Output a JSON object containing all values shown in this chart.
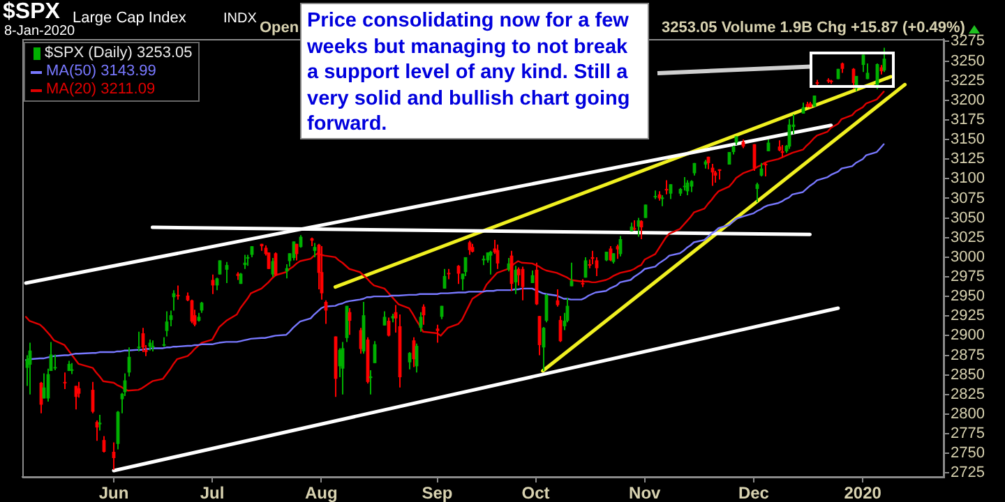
{
  "chart_data": {
    "type": "candlestick",
    "title": "$SPX",
    "subtitle": "Large Cap Index",
    "annotations": [
      "INDX",
      "8-Jan-2020",
      "Open",
      "3253.05 Volume 1.9B Chg +15.87 (+0.49%)",
      "Price consolidating now for a few weeks but managing to not break a support level of any kind. Still a very solid and bullish chart going forward."
    ],
    "x": [
      "2019-05-09",
      "2019-05-10",
      "2019-05-13",
      "2019-05-14",
      "2019-05-15",
      "2019-05-16",
      "2019-05-17",
      "2019-05-20",
      "2019-05-21",
      "2019-05-22",
      "2019-05-23",
      "2019-05-24",
      "2019-05-28",
      "2019-05-29",
      "2019-05-30",
      "2019-05-31",
      "2019-06-03",
      "2019-06-04",
      "2019-06-05",
      "2019-06-06",
      "2019-06-07",
      "2019-06-10",
      "2019-06-11",
      "2019-06-12",
      "2019-06-13",
      "2019-06-14",
      "2019-06-17",
      "2019-06-18",
      "2019-06-19",
      "2019-06-20",
      "2019-06-21",
      "2019-06-24",
      "2019-06-25",
      "2019-06-26",
      "2019-06-27",
      "2019-06-28",
      "2019-07-01",
      "2019-07-02",
      "2019-07-03",
      "2019-07-05",
      "2019-07-08",
      "2019-07-09",
      "2019-07-10",
      "2019-07-11",
      "2019-07-12",
      "2019-07-15",
      "2019-07-16",
      "2019-07-17",
      "2019-07-18",
      "2019-07-19",
      "2019-07-22",
      "2019-07-23",
      "2019-07-24",
      "2019-07-25",
      "2019-07-26",
      "2019-07-29",
      "2019-07-30",
      "2019-07-31",
      "2019-08-01",
      "2019-08-02",
      "2019-08-05",
      "2019-08-06",
      "2019-08-07",
      "2019-08-08",
      "2019-08-09",
      "2019-08-12",
      "2019-08-13",
      "2019-08-14",
      "2019-08-15",
      "2019-08-16",
      "2019-08-19",
      "2019-08-20",
      "2019-08-21",
      "2019-08-22",
      "2019-08-23",
      "2019-08-26",
      "2019-08-27",
      "2019-08-28",
      "2019-08-29",
      "2019-08-30",
      "2019-09-03",
      "2019-09-04",
      "2019-09-05",
      "2019-09-06",
      "2019-09-09",
      "2019-09-10",
      "2019-09-11",
      "2019-09-12",
      "2019-09-13",
      "2019-09-16",
      "2019-09-17",
      "2019-09-18",
      "2019-09-19",
      "2019-09-20",
      "2019-09-23",
      "2019-09-24",
      "2019-09-25",
      "2019-09-26",
      "2019-09-27",
      "2019-09-30",
      "2019-10-01",
      "2019-10-02",
      "2019-10-03",
      "2019-10-04",
      "2019-10-07",
      "2019-10-08",
      "2019-10-09",
      "2019-10-10",
      "2019-10-11",
      "2019-10-14",
      "2019-10-15",
      "2019-10-16",
      "2019-10-17",
      "2019-10-18",
      "2019-10-21",
      "2019-10-22",
      "2019-10-23",
      "2019-10-24",
      "2019-10-25",
      "2019-10-28",
      "2019-10-29",
      "2019-10-30",
      "2019-10-31",
      "2019-11-01",
      "2019-11-04",
      "2019-11-05",
      "2019-11-06",
      "2019-11-07",
      "2019-11-08",
      "2019-11-11",
      "2019-11-12",
      "2019-11-13",
      "2019-11-14",
      "2019-11-15",
      "2019-11-18",
      "2019-11-19",
      "2019-11-20",
      "2019-11-21",
      "2019-11-22",
      "2019-11-25",
      "2019-11-26",
      "2019-11-27",
      "2019-11-29",
      "2019-12-02",
      "2019-12-03",
      "2019-12-04",
      "2019-12-05",
      "2019-12-06",
      "2019-12-09",
      "2019-12-10",
      "2019-12-11",
      "2019-12-12",
      "2019-12-13",
      "2019-12-16",
      "2019-12-17",
      "2019-12-18",
      "2019-12-19",
      "2019-12-20",
      "2019-12-23",
      "2019-12-24",
      "2019-12-26",
      "2019-12-27",
      "2019-12-30",
      "2019-12-31",
      "2020-01-02",
      "2020-01-03",
      "2020-01-06",
      "2020-01-07",
      "2020-01-08"
    ],
    "series": [
      {
        "name": "$SPX (Daily) 3253.05",
        "ohlc": [
          [
            2859,
            2875,
            2836,
            2870
          ],
          [
            2863,
            2891,
            2825,
            2881
          ],
          [
            2840,
            2841,
            2801,
            2812
          ],
          [
            2820,
            2852,
            2820,
            2834
          ],
          [
            2820,
            2858,
            2816,
            2851
          ],
          [
            2855,
            2892,
            2855,
            2876
          ],
          [
            2859,
            2876,
            2856,
            2860
          ],
          [
            2841,
            2853,
            2832,
            2840
          ],
          [
            2855,
            2868,
            2855,
            2864
          ],
          [
            2856,
            2865,
            2851,
            2857
          ],
          [
            2836,
            2836,
            2806,
            2822
          ],
          [
            2833,
            2841,
            2821,
            2826
          ],
          [
            2831,
            2841,
            2801,
            2803
          ],
          [
            2790,
            2792,
            2766,
            2783
          ],
          [
            2787,
            2799,
            2779,
            2789
          ],
          [
            2767,
            2772,
            2751,
            2752
          ],
          [
            2752,
            2764,
            2729,
            2744
          ],
          [
            2762,
            2804,
            2755,
            2803
          ],
          [
            2819,
            2827,
            2801,
            2826
          ],
          [
            2828,
            2852,
            2823,
            2843
          ],
          [
            2853,
            2885,
            2848,
            2873
          ],
          [
            2885,
            2905,
            2880,
            2886
          ],
          [
            2903,
            2910,
            2879,
            2885
          ],
          [
            2882,
            2888,
            2874,
            2879
          ],
          [
            2886,
            2895,
            2881,
            2891
          ],
          [
            2886,
            2894,
            2880,
            2887
          ],
          [
            2889,
            2898,
            2886,
            2889
          ],
          [
            2906,
            2931,
            2899,
            2918
          ],
          [
            2920,
            2932,
            2912,
            2926
          ],
          [
            2949,
            2958,
            2932,
            2954
          ],
          [
            2952,
            2964,
            2946,
            2950
          ],
          [
            2951,
            2955,
            2944,
            2945
          ],
          [
            2945,
            2946,
            2916,
            2918
          ],
          [
            2926,
            2933,
            2912,
            2914
          ],
          [
            2919,
            2929,
            2918,
            2924
          ],
          [
            2932,
            2943,
            2929,
            2942
          ],
          [
            2971,
            2978,
            2953,
            2964
          ],
          [
            2964,
            2974,
            2958,
            2973
          ],
          [
            2978,
            2996,
            2978,
            2996
          ],
          [
            2984,
            2994,
            2967,
            2990
          ],
          [
            2979,
            2981,
            2971,
            2976
          ],
          [
            2966,
            2980,
            2966,
            2979
          ],
          [
            2990,
            3003,
            2985,
            2993
          ],
          [
            2999,
            3003,
            2989,
            3000
          ],
          [
            3003,
            3014,
            3000,
            3014
          ],
          [
            3017,
            3017,
            3008,
            3014
          ],
          [
            3012,
            3015,
            3002,
            3004
          ],
          [
            3006,
            3006,
            2985,
            2985
          ],
          [
            2978,
            2999,
            2975,
            2995
          ],
          [
            3005,
            3006,
            2976,
            2977
          ],
          [
            2982,
            2991,
            2973,
            2986
          ],
          [
            2995,
            3005,
            2988,
            3005
          ],
          [
            2999,
            3020,
            2996,
            3020
          ],
          [
            3017,
            3017,
            2996,
            3004
          ],
          [
            3013,
            3028,
            3012,
            3026
          ],
          [
            3024,
            3025,
            3014,
            3021
          ],
          [
            3008,
            3018,
            3000,
            3013
          ],
          [
            3016,
            3017,
            2959,
            2980
          ],
          [
            2981,
            3014,
            2946,
            2954
          ],
          [
            2943,
            2945,
            2915,
            2932
          ],
          [
            2899,
            2899,
            2822,
            2845
          ],
          [
            2861,
            2884,
            2847,
            2882
          ],
          [
            2858,
            2892,
            2825,
            2884
          ],
          [
            2897,
            2938,
            2892,
            2938
          ],
          [
            2930,
            2935,
            2901,
            2919
          ],
          [
            2907,
            2910,
            2877,
            2883
          ],
          [
            2880,
            2943,
            2877,
            2926
          ],
          [
            2895,
            2898,
            2839,
            2841
          ],
          [
            2846,
            2856,
            2825,
            2848
          ],
          [
            2865,
            2893,
            2865,
            2889
          ],
          [
            2913,
            2931,
            2913,
            2924
          ],
          [
            2919,
            2923,
            2899,
            2900
          ],
          [
            2922,
            2928,
            2917,
            2925
          ],
          [
            2930,
            2939,
            2904,
            2922
          ],
          [
            2912,
            2927,
            2834,
            2847
          ],
          [
            2866,
            2879,
            2857,
            2878
          ],
          [
            2894,
            2898,
            2860,
            2870
          ],
          [
            2861,
            2890,
            2853,
            2887
          ],
          [
            2910,
            2930,
            2905,
            2924
          ],
          [
            2937,
            2940,
            2914,
            2926
          ],
          [
            2909,
            2914,
            2891,
            2906
          ],
          [
            2924,
            2938,
            2921,
            2938
          ],
          [
            2960,
            2985,
            2960,
            2976
          ],
          [
            2980,
            2985,
            2972,
            2979
          ],
          [
            2989,
            2990,
            2966,
            2979
          ],
          [
            2972,
            2979,
            2958,
            2979
          ],
          [
            2981,
            3000,
            2976,
            3000
          ],
          [
            3019,
            3021,
            3003,
            3009
          ],
          [
            3013,
            3017,
            3006,
            3007
          ],
          [
            2996,
            3002,
            2990,
            2998
          ],
          [
            2996,
            3006,
            2993,
            3006
          ],
          [
            3002,
            3008,
            2978,
            3007
          ],
          [
            3011,
            3022,
            3004,
            3006
          ],
          [
            3009,
            3016,
            2985,
            2992
          ],
          [
            2984,
            2999,
            2982,
            2992
          ],
          [
            3002,
            3008,
            2957,
            2966
          ],
          [
            2968,
            2989,
            2953,
            2984
          ],
          [
            2985,
            2987,
            2964,
            2977
          ],
          [
            2985,
            2988,
            2945,
            2962
          ],
          [
            2967,
            2983,
            2967,
            2977
          ],
          [
            2984,
            2993,
            2939,
            2940
          ],
          [
            2925,
            2925,
            2875,
            2888
          ],
          [
            2885,
            2911,
            2855,
            2910
          ],
          [
            2919,
            2953,
            2917,
            2952
          ],
          [
            2945,
            2959,
            2937,
            2939
          ],
          [
            2920,
            2925,
            2892,
            2893
          ],
          [
            2912,
            2929,
            2907,
            2919
          ],
          [
            2919,
            2948,
            2917,
            2938
          ],
          [
            2963,
            2993,
            2963,
            2970
          ],
          [
            2967,
            2972,
            2962,
            2966
          ],
          [
            2974,
            3000,
            2974,
            2996
          ],
          [
            2991,
            2997,
            2986,
            2990
          ],
          [
            3000,
            3008,
            2991,
            2998
          ],
          [
            2996,
            3000,
            2976,
            2986
          ],
          [
            2996,
            3007,
            2995,
            3007
          ],
          [
            3011,
            3014,
            2995,
            2996
          ],
          [
            2994,
            3005,
            2992,
            3005
          ],
          [
            3014,
            3016,
            2998,
            3010
          ],
          [
            3004,
            3027,
            3001,
            3023
          ],
          [
            3033,
            3044,
            3033,
            3039
          ],
          [
            3037,
            3047,
            3034,
            3036
          ],
          [
            3039,
            3050,
            3026,
            3047
          ],
          [
            3046,
            3047,
            3023,
            3038
          ],
          [
            3050,
            3067,
            3050,
            3067
          ],
          [
            3077,
            3085,
            3074,
            3078
          ],
          [
            3080,
            3084,
            3072,
            3075
          ],
          [
            3076,
            3079,
            3065,
            3076
          ],
          [
            3087,
            3098,
            3080,
            3085
          ],
          [
            3081,
            3093,
            3074,
            3093
          ],
          [
            3081,
            3088,
            3078,
            3087
          ],
          [
            3090,
            3102,
            3085,
            3091
          ],
          [
            3084,
            3098,
            3079,
            3095
          ],
          [
            3090,
            3098,
            3083,
            3097
          ],
          [
            3107,
            3120,
            3104,
            3120
          ],
          [
            3118,
            3124,
            3113,
            3122
          ],
          [
            3128,
            3128,
            3112,
            3120
          ],
          [
            3114,
            3119,
            3091,
            3108
          ],
          [
            3108,
            3110,
            3095,
            3104
          ],
          [
            3112,
            3112,
            3099,
            3110
          ],
          [
            3118,
            3134,
            3118,
            3134
          ],
          [
            3134,
            3142,
            3131,
            3141
          ],
          [
            3146,
            3154,
            3143,
            3154
          ],
          [
            3147,
            3150,
            3139,
            3141
          ],
          [
            3144,
            3144,
            3110,
            3113
          ],
          [
            3087,
            3095,
            3070,
            3093
          ],
          [
            3104,
            3120,
            3103,
            3113
          ],
          [
            3119,
            3120,
            3103,
            3117
          ],
          [
            3135,
            3150,
            3135,
            3146
          ],
          [
            3141,
            3149,
            3135,
            3136
          ],
          [
            3135,
            3143,
            3127,
            3133
          ],
          [
            3135,
            3143,
            3133,
            3142
          ],
          [
            3141,
            3176,
            3138,
            3169
          ],
          [
            3166,
            3182,
            3157,
            3169
          ],
          [
            3183,
            3197,
            3183,
            3191
          ],
          [
            3195,
            3198,
            3191,
            3192
          ],
          [
            3196,
            3198,
            3191,
            3191
          ],
          [
            3192,
            3206,
            3192,
            3206
          ],
          [
            3223,
            3226,
            3217,
            3221
          ],
          [
            3226,
            3228,
            3222,
            3224
          ],
          [
            3225,
            3226,
            3221,
            3223
          ],
          [
            3227,
            3240,
            3227,
            3240
          ],
          [
            3247,
            3248,
            3235,
            3240
          ],
          [
            3240,
            3241,
            3215,
            3222
          ],
          [
            3215,
            3231,
            3212,
            3231
          ],
          [
            3245,
            3258,
            3236,
            3258
          ],
          [
            3227,
            3247,
            3227,
            3235
          ],
          [
            3218,
            3247,
            3214,
            3246
          ],
          [
            3242,
            3245,
            3233,
            3237
          ],
          [
            3238,
            3267,
            3236,
            3253
          ]
        ],
        "colors": [
          "#00b000",
          "#00b000",
          "#ff0000",
          "#00b000",
          "#00b000",
          "#00b000",
          "#00b000",
          "#ff0000",
          "#00b000",
          "#00b000",
          "#ff0000",
          "#ff0000",
          "#ff0000",
          "#ff0000",
          "#00b000",
          "#ff0000",
          "#ff0000",
          "#00b000",
          "#00b000",
          "#00b000",
          "#00b000",
          "#00b000",
          "#ff0000",
          "#ff0000",
          "#00b000",
          "#00b000",
          "#00b000",
          "#00b000",
          "#00b000",
          "#00b000",
          "#ff0000",
          "#ff0000",
          "#ff0000",
          "#ff0000",
          "#00b000",
          "#00b000",
          "#ff0000",
          "#00b000",
          "#00b000",
          "#00b000",
          "#ff0000",
          "#00b000",
          "#00b000",
          "#00b000",
          "#00b000",
          "#ff0000",
          "#ff0000",
          "#ff0000",
          "#00b000",
          "#ff0000",
          "#00b000",
          "#00b000",
          "#00b000",
          "#ff0000",
          "#00b000",
          "#ff0000",
          "#00b000",
          "#ff0000",
          "#ff0000",
          "#ff0000",
          "#ff0000",
          "#00b000",
          "#00b000",
          "#00b000",
          "#ff0000",
          "#ff0000",
          "#00b000",
          "#ff0000",
          "#00b000",
          "#00b000",
          "#00b000",
          "#ff0000",
          "#00b000",
          "#ff0000",
          "#ff0000",
          "#00b000",
          "#ff0000",
          "#00b000",
          "#00b000",
          "#ff0000",
          "#ff0000",
          "#00b000",
          "#00b000",
          "#ff0000",
          "#ff0000",
          "#00b000",
          "#00b000",
          "#ff0000",
          "#ff0000",
          "#00b000",
          "#00b000",
          "#00b000",
          "#ff0000",
          "#ff0000",
          "#00b000",
          "#ff0000",
          "#00b000",
          "#ff0000",
          "#ff0000",
          "#00b000",
          "#ff0000",
          "#ff0000",
          "#00b000",
          "#00b000",
          "#ff0000",
          "#ff0000",
          "#00b000",
          "#00b000",
          "#00b000",
          "#ff0000",
          "#00b000",
          "#ff0000",
          "#ff0000",
          "#ff0000",
          "#00b000",
          "#ff0000",
          "#00b000",
          "#ff0000",
          "#00b000",
          "#00b000",
          "#ff0000",
          "#00b000",
          "#ff0000",
          "#00b000",
          "#00b000",
          "#ff0000",
          "#00b000",
          "#ff0000",
          "#00b000",
          "#00b000",
          "#00b000",
          "#00b000",
          "#00b000",
          "#00b000",
          "#00b000",
          "#ff0000",
          "#ff0000",
          "#ff0000",
          "#ff0000",
          "#00b000",
          "#00b000",
          "#00b000",
          "#ff0000",
          "#ff0000",
          "#00b000",
          "#00b000",
          "#ff0000",
          "#00b000",
          "#ff0000",
          "#ff0000",
          "#00b000",
          "#00b000",
          "#00b000",
          "#00b000",
          "#ff0000",
          "#ff0000",
          "#00b000",
          "#ff0000",
          "#ff0000",
          "#ff0000",
          "#00b000",
          "#ff0000",
          "#ff0000",
          "#00b000",
          "#00b000",
          "#00b000",
          "#00b000",
          "#ff0000",
          "#00b000"
        ]
      },
      {
        "type": "line",
        "name": "MA(50) 3143.99",
        "color": "#7878ff",
        "values": [
          2869,
          2870,
          2871,
          2871,
          2872,
          2873,
          2874,
          2875,
          2875,
          2876,
          2877,
          2877,
          2878,
          2878,
          2879,
          2879,
          2879,
          2880,
          2880,
          2881,
          2881,
          2882,
          2882,
          2883,
          2883,
          2884,
          2884,
          2885,
          2885,
          2886,
          2886,
          2887,
          2887,
          2888,
          2888,
          2889,
          2889,
          2890,
          2891,
          2892,
          2892,
          2893,
          2894,
          2895,
          2896,
          2897,
          2897,
          2898,
          2899,
          2900,
          2901,
          2905,
          2910,
          2914,
          2918,
          2922,
          2927,
          2931,
          2935,
          2937,
          2938,
          2940,
          2941,
          2943,
          2944,
          2946,
          2947,
          2949,
          2949,
          2950,
          2950,
          2950,
          2951,
          2951,
          2951,
          2952,
          2952,
          2952,
          2953,
          2953,
          2953,
          2954,
          2954,
          2954,
          2955,
          2955,
          2955,
          2956,
          2956,
          2956,
          2957,
          2957,
          2957,
          2958,
          2958,
          2958,
          2959,
          2959,
          2960,
          2960,
          2958,
          2956,
          2954,
          2953,
          2951,
          2949,
          2947,
          2947,
          2946,
          2946,
          2948,
          2951,
          2953,
          2955,
          2957,
          2960,
          2962,
          2964,
          2968,
          2971,
          2975,
          2978,
          2981,
          2985,
          2988,
          2992,
          2995,
          2998,
          3002,
          3005,
          3008,
          3012,
          3015,
          3019,
          3022,
          3026,
          3030,
          3033,
          3037,
          3041,
          3045,
          3049,
          3052,
          3056,
          3059,
          3061,
          3064,
          3066,
          3069,
          3071,
          3074,
          3076,
          3080,
          3083,
          3087,
          3091,
          3094,
          3098,
          3102,
          3105,
          3109,
          3113,
          3116,
          3120,
          3125,
          3130,
          3134,
          3139,
          3144
        ]
      },
      {
        "type": "line",
        "name": "MA(20) 3211.09",
        "color": "#e00000",
        "values": [
          2924,
          2919,
          2914,
          2910,
          2905,
          2900,
          2894,
          2888,
          2882,
          2876,
          2870,
          2864,
          2859,
          2853,
          2848,
          2842,
          2840,
          2837,
          2835,
          2832,
          2830,
          2831,
          2833,
          2836,
          2839,
          2842,
          2845,
          2851,
          2857,
          2864,
          2870,
          2874,
          2878,
          2883,
          2887,
          2891,
          2895,
          2903,
          2911,
          2919,
          2927,
          2935,
          2941,
          2947,
          2954,
          2960,
          2964,
          2968,
          2973,
          2977,
          2981,
          2985,
          2988,
          2992,
          2995,
          2998,
          3002,
          3005,
          3003,
          3002,
          3000,
          2996,
          2993,
          2989,
          2985,
          2981,
          2977,
          2973,
          2968,
          2964,
          2960,
          2955,
          2950,
          2945,
          2940,
          2935,
          2928,
          2920,
          2913,
          2905,
          2903,
          2900,
          2905,
          2910,
          2915,
          2920,
          2929,
          2938,
          2947,
          2956,
          2965,
          2970,
          2975,
          2980,
          2985,
          2988,
          2992,
          2995,
          2993,
          2992,
          2990,
          2988,
          2985,
          2983,
          2980,
          2978,
          2976,
          2974,
          2971,
          2969,
          2969,
          2969,
          2968,
          2968,
          2971,
          2973,
          2976,
          2978,
          2980,
          2983,
          2985,
          2988,
          2990,
          2997,
          3004,
          3011,
          3018,
          3025,
          3030,
          3036,
          3041,
          3046,
          3051,
          3057,
          3062,
          3068,
          3073,
          3079,
          3084,
          3090,
          3095,
          3101,
          3107,
          3112,
          3115,
          3117,
          3120,
          3122,
          3125,
          3127,
          3129,
          3131,
          3133,
          3137,
          3142,
          3146,
          3151,
          3155,
          3160,
          3165,
          3170,
          3176,
          3181,
          3186,
          3191,
          3196,
          3201,
          3206,
          3211
        ]
      },
      {
        "type": "line",
        "color": "#ffffff",
        "x": [
          "2019-05-09",
          "2019-12-24"
        ],
        "values": [
          2967,
          3168
        ]
      },
      {
        "type": "line",
        "color": "#ffffff",
        "x": [
          "2019-06-03",
          "2019-12-26"
        ],
        "values": [
          2728,
          2935
        ]
      },
      {
        "type": "line",
        "color": "#ffffff",
        "x": [
          "2019-06-14",
          "2019-12-18"
        ],
        "values": [
          3038,
          3029
        ]
      },
      {
        "type": "line",
        "color": "#f0f020",
        "x": [
          "2019-08-05",
          "2020-01-10"
        ],
        "values": [
          2962,
          3230
        ]
      },
      {
        "type": "line",
        "color": "#f0f020",
        "x": [
          "2019-10-03",
          "2020-01-14"
        ],
        "values": [
          2855,
          3220
        ]
      }
    ],
    "xlim": [
      "2019-05-08",
      "2020-01-25"
    ],
    "xticks": [
      {
        "value": "2019-06-03",
        "label": "Jun"
      },
      {
        "value": "2019-07-01",
        "label": "Jul"
      },
      {
        "value": "2019-08-01",
        "label": "Aug"
      },
      {
        "value": "2019-09-03",
        "label": "Sep"
      },
      {
        "value": "2019-10-01",
        "label": "Oct"
      },
      {
        "value": "2019-11-01",
        "label": "Nov"
      },
      {
        "value": "2019-12-02",
        "label": "Dec"
      },
      {
        "value": "2020-01-02",
        "label": "2020"
      }
    ],
    "ylim": [
      2720,
      3278
    ],
    "yticks": [
      2725,
      2750,
      2775,
      2800,
      2825,
      2850,
      2875,
      2900,
      2925,
      2950,
      2975,
      3000,
      3025,
      3050,
      3075,
      3100,
      3125,
      3150,
      3175,
      3200,
      3225,
      3250,
      3275
    ],
    "grid": false,
    "legend": "top left",
    "marker": "none"
  }
}
